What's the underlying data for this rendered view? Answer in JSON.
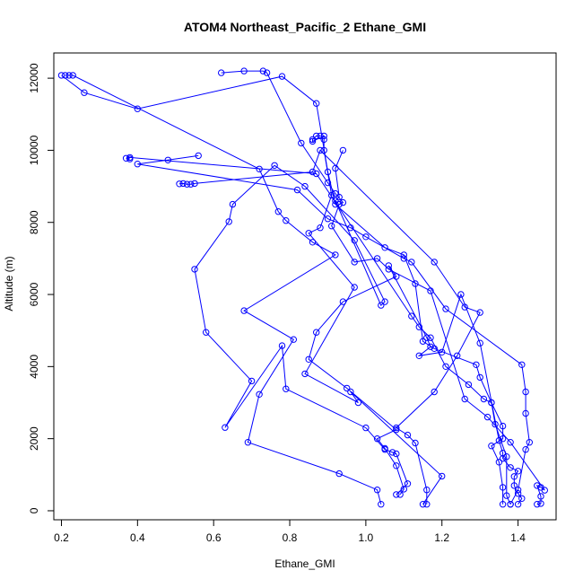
{
  "chart_data": {
    "type": "line",
    "title": "ATOM4 Northeast_Pacific_2 Ethane_GMI",
    "xlabel": "Ethane_GMI",
    "ylabel": "Altitude (m)",
    "xlim": [
      0.18,
      1.5
    ],
    "ylim": [
      -250,
      12700
    ],
    "x_ticks": [
      0.2,
      0.4,
      0.6,
      0.8,
      1.0,
      1.2,
      1.4
    ],
    "x_tick_labels": [
      "0.2",
      "0.4",
      "0.6",
      "0.8",
      "1.0",
      "1.2",
      "1.4"
    ],
    "y_ticks": [
      0,
      2000,
      4000,
      6000,
      8000,
      10000,
      12000
    ],
    "y_tick_labels": [
      "0",
      "2000",
      "4000",
      "6000",
      "8000",
      "10000",
      "12000"
    ],
    "grid": false,
    "line_color": "#0000ff",
    "marker": "open-circle",
    "series": [
      {
        "points": [
          [
            1.04,
            180
          ],
          [
            1.03,
            580
          ],
          [
            0.93,
            1030
          ],
          [
            0.69,
            1900
          ],
          [
            0.72,
            3230
          ],
          [
            0.81,
            4750
          ],
          [
            0.68,
            5550
          ],
          [
            0.92,
            7100
          ],
          [
            0.86,
            7450
          ],
          [
            0.79,
            8050
          ],
          [
            0.77,
            8300
          ],
          [
            0.72,
            9480
          ],
          [
            0.23,
            12080
          ],
          [
            0.21,
            12080
          ],
          [
            0.22,
            12080
          ]
        ]
      },
      {
        "points": [
          [
            1.08,
            450
          ],
          [
            1.11,
            750
          ],
          [
            1.08,
            1580
          ],
          [
            1.07,
            1620
          ],
          [
            1.05,
            1700
          ],
          [
            1.0,
            2300
          ],
          [
            0.79,
            3380
          ],
          [
            0.78,
            4580
          ],
          [
            0.63,
            2310
          ],
          [
            0.7,
            3600
          ],
          [
            0.58,
            4950
          ],
          [
            0.55,
            6700
          ],
          [
            0.64,
            8020
          ],
          [
            0.65,
            8500
          ],
          [
            0.76,
            9580
          ],
          [
            0.84,
            9000
          ],
          [
            0.97,
            7500
          ],
          [
            1.05,
            5800
          ],
          [
            1.04,
            5700
          ],
          [
            0.92,
            8600
          ],
          [
            0.93,
            8700
          ],
          [
            0.92,
            9500
          ],
          [
            0.94,
            10000
          ]
        ]
      },
      {
        "points": [
          [
            1.15,
            180
          ],
          [
            1.2,
            960
          ],
          [
            0.96,
            3300
          ],
          [
            0.98,
            3000
          ],
          [
            0.84,
            3800
          ],
          [
            0.97,
            6200
          ],
          [
            0.85,
            7700
          ],
          [
            0.88,
            7850
          ],
          [
            0.91,
            8750
          ],
          [
            0.89,
            10000
          ],
          [
            0.89,
            10300
          ],
          [
            0.89,
            10400
          ],
          [
            0.86,
            10250
          ],
          [
            0.86,
            10300
          ],
          [
            0.87,
            10400
          ],
          [
            0.88,
            10400
          ]
        ]
      },
      {
        "points": [
          [
            1.09,
            450
          ],
          [
            1.1,
            600
          ],
          [
            1.08,
            1250
          ],
          [
            1.05,
            1730
          ],
          [
            1.03,
            2000
          ],
          [
            1.08,
            2250
          ],
          [
            0.95,
            3400
          ],
          [
            0.85,
            4200
          ],
          [
            0.87,
            4950
          ],
          [
            0.94,
            5800
          ],
          [
            1.08,
            6500
          ],
          [
            1.06,
            6800
          ],
          [
            1.16,
            4800
          ],
          [
            1.17,
            4550
          ],
          [
            1.14,
            4300
          ],
          [
            1.2,
            4400
          ],
          [
            1.25,
            6000
          ],
          [
            1.3,
            4650
          ],
          [
            1.35,
            1950
          ],
          [
            1.36,
            1600
          ],
          [
            1.36,
            1450
          ],
          [
            1.38,
            1200
          ],
          [
            1.4,
            1100
          ],
          [
            1.39,
            950
          ],
          [
            1.39,
            700
          ],
          [
            1.4,
            480
          ],
          [
            1.41,
            340
          ],
          [
            1.4,
            180
          ]
        ]
      },
      {
        "points": [
          [
            1.16,
            180
          ],
          [
            1.16,
            580
          ],
          [
            1.13,
            1880
          ],
          [
            1.11,
            2100
          ],
          [
            1.08,
            2300
          ],
          [
            1.18,
            3300
          ],
          [
            1.24,
            4300
          ],
          [
            1.3,
            5500
          ],
          [
            1.26,
            5650
          ],
          [
            1.18,
            6900
          ],
          [
            0.88,
            10000
          ],
          [
            0.86,
            9400
          ],
          [
            0.55,
            9080
          ],
          [
            0.54,
            9060
          ],
          [
            0.53,
            9060
          ],
          [
            0.52,
            9080
          ],
          [
            0.51,
            9070
          ]
        ]
      },
      {
        "points": [
          [
            1.36,
            180
          ],
          [
            1.36,
            650
          ],
          [
            1.35,
            1350
          ],
          [
            1.33,
            1800
          ],
          [
            1.36,
            2000
          ],
          [
            1.36,
            2350
          ],
          [
            1.33,
            3000
          ],
          [
            1.31,
            3100
          ],
          [
            1.27,
            3500
          ],
          [
            1.21,
            4000
          ],
          [
            1.17,
            4800
          ],
          [
            1.14,
            5100
          ],
          [
            1.12,
            5400
          ],
          [
            0.87,
            9350
          ],
          [
            0.38,
            9800
          ],
          [
            0.37,
            9780
          ],
          [
            0.38,
            9760
          ]
        ]
      },
      {
        "points": [
          [
            1.38,
            180
          ],
          [
            1.4,
            580
          ],
          [
            1.42,
            1700
          ],
          [
            1.43,
            1900
          ],
          [
            1.42,
            2700
          ],
          [
            1.42,
            3300
          ],
          [
            1.41,
            4050
          ],
          [
            1.21,
            5600
          ],
          [
            1.12,
            6900
          ],
          [
            1.1,
            7000
          ],
          [
            1.0,
            7600
          ],
          [
            0.96,
            7850
          ],
          [
            0.9,
            8100
          ],
          [
            0.82,
            8900
          ],
          [
            0.4,
            9620
          ],
          [
            0.48,
            9730
          ],
          [
            0.56,
            9850
          ]
        ]
      },
      {
        "points": [
          [
            1.45,
            180
          ],
          [
            1.46,
            200
          ],
          [
            1.46,
            400
          ],
          [
            1.45,
            700
          ],
          [
            1.46,
            650
          ],
          [
            1.47,
            570
          ],
          [
            1.38,
            1900
          ],
          [
            1.32,
            2600
          ],
          [
            1.26,
            3100
          ],
          [
            1.17,
            6100
          ],
          [
            1.06,
            6700
          ],
          [
            1.03,
            7000
          ],
          [
            0.97,
            6900
          ],
          [
            0.91,
            7900
          ],
          [
            0.93,
            8500
          ],
          [
            0.94,
            8550
          ],
          [
            0.92,
            8800
          ],
          [
            0.9,
            9100
          ],
          [
            0.83,
            10200
          ],
          [
            0.74,
            12150
          ],
          [
            0.73,
            12200
          ],
          [
            0.68,
            12200
          ],
          [
            0.62,
            12150
          ]
        ]
      },
      {
        "points": [
          [
            1.38,
            180
          ],
          [
            1.37,
            420
          ],
          [
            1.37,
            1500
          ],
          [
            1.34,
            2400
          ],
          [
            1.33,
            3000
          ],
          [
            1.3,
            3700
          ],
          [
            1.29,
            4050
          ],
          [
            1.18,
            4500
          ],
          [
            1.15,
            4700
          ],
          [
            1.13,
            6300
          ],
          [
            1.1,
            7100
          ],
          [
            1.05,
            7300
          ],
          [
            0.92,
            8500
          ],
          [
            0.9,
            9400
          ],
          [
            0.87,
            11300
          ],
          [
            0.78,
            12050
          ],
          [
            0.4,
            11150
          ],
          [
            0.26,
            11600
          ],
          [
            0.2,
            12080
          ]
        ]
      }
    ]
  }
}
